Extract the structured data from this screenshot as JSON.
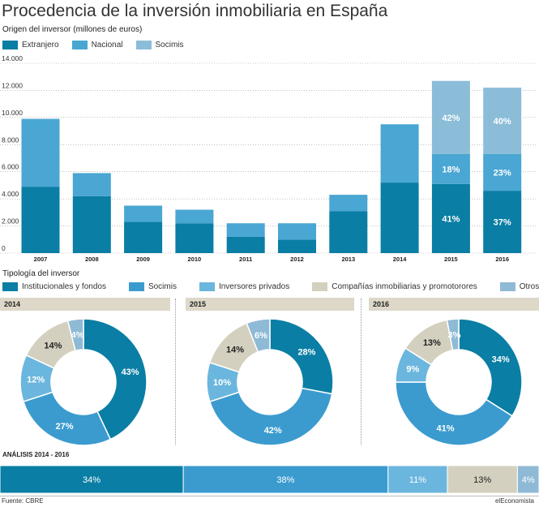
{
  "title": "Procedencia de la inversión inmobiliaria en España",
  "subtitle": "Origen del inversor (millones de euros)",
  "colors": {
    "extranjero": "#0a7ea4",
    "nacional": "#4aa6d2",
    "socimis_top": "#8bbdd9",
    "inst": "#0a7ea4",
    "socimis": "#3b9bcf",
    "privados": "#6bb6de",
    "companias": "#d4d0bf",
    "otros": "#8fbad6",
    "yearbar": "#ddd8c8"
  },
  "legend_top": [
    {
      "label": "Extranjero",
      "color": "#0a7ea4"
    },
    {
      "label": "Nacional",
      "color": "#4aa6d2"
    },
    {
      "label": "Socimis",
      "color": "#8bbdd9"
    }
  ],
  "tipologia_title": "Tipología del inversor",
  "legend_bottom": [
    {
      "label": "Institucionales y fondos",
      "color": "#0a7ea4"
    },
    {
      "label": "Socimis",
      "color": "#3b9bcf"
    },
    {
      "label": "Inversores privados",
      "color": "#6bb6de"
    },
    {
      "label": "Compañías inmobiliarias y promotorores",
      "color": "#d4d0bf"
    },
    {
      "label": "Otros",
      "color": "#8fbad6"
    }
  ],
  "analysis_title": "ANÁLISIS 2014 - 2016",
  "source": "Fuente: CBRE",
  "brand": "elEconomista",
  "chart_data": [
    {
      "type": "bar",
      "stacked": true,
      "categories": [
        "2007",
        "2008",
        "2009",
        "2010",
        "2011",
        "2012",
        "2013",
        "2014",
        "2015",
        "2016"
      ],
      "series": [
        {
          "name": "Extranjero",
          "values": [
            4900,
            4200,
            2300,
            2200,
            1200,
            1000,
            3100,
            5200,
            5100,
            4600
          ]
        },
        {
          "name": "Nacional",
          "values": [
            5000,
            1700,
            1200,
            1000,
            1000,
            1200,
            1200,
            4300,
            2200,
            2700
          ]
        },
        {
          "name": "Socimis",
          "values": [
            0,
            0,
            0,
            0,
            0,
            0,
            0,
            0,
            5400,
            4900
          ]
        }
      ],
      "bar_labels": {
        "2015": [
          "41%",
          "18%",
          "42%"
        ],
        "2016": [
          "37%",
          "23%",
          "40%"
        ]
      },
      "ylim": [
        0,
        14000
      ],
      "yticks": [
        "0",
        "2.000",
        "4.000",
        "6.000",
        "8.000",
        "10.000",
        "12.000",
        "14.000"
      ],
      "grid": true,
      "legend": "top-left"
    },
    {
      "type": "pie",
      "donut": true,
      "title": "2014",
      "categories": [
        "Institucionales y fondos",
        "Socimis",
        "Inversores privados",
        "Compañías inmobiliarias y promotorores",
        "Otros"
      ],
      "values": [
        43,
        27,
        12,
        14,
        4
      ]
    },
    {
      "type": "pie",
      "donut": true,
      "title": "2015",
      "categories": [
        "Institucionales y fondos",
        "Socimis",
        "Inversores privados",
        "Compañías inmobiliarias y promotorores",
        "Otros"
      ],
      "values": [
        28,
        42,
        10,
        14,
        6
      ]
    },
    {
      "type": "pie",
      "donut": true,
      "title": "2016",
      "categories": [
        "Institucionales y fondos",
        "Socimis",
        "Inversores privados",
        "Compañías inmobiliarias y promotorores",
        "Otros"
      ],
      "values": [
        34,
        41,
        9,
        13,
        3
      ]
    },
    {
      "type": "bar",
      "stacked": true,
      "orientation": "horizontal",
      "title": "ANÁLISIS 2014 - 2016",
      "categories": [
        "Institucionales y fondos",
        "Socimis",
        "Inversores privados",
        "Compañías inmobiliarias y promotorores",
        "Otros"
      ],
      "values": [
        34,
        38,
        11,
        13,
        4
      ]
    }
  ]
}
